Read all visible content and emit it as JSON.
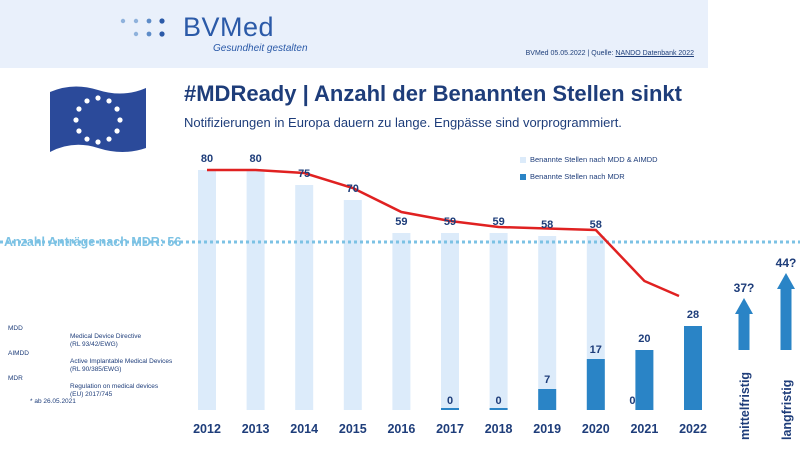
{
  "header": {
    "logo_text": "BVMed",
    "tagline": "Gesundheit gestalten",
    "source_prefix": "BVMed 05.05.2022 | Quelle: ",
    "source_link": "NANDO Datenbank 2022"
  },
  "title": "#MDReady | Anzahl der Benannten Stellen sinkt",
  "subtitle": "Notifizierungen in Europa dauern zu lange. Engpässe sind vorprogrammiert.",
  "reference_label": "Anzahl Anträge nach MDR: 56",
  "abbreviations": [
    {
      "key": "MDD",
      "line1": "Medical Device Directive",
      "line2": "(RL 93/42/EWG)"
    },
    {
      "key": "AIMDD",
      "line1": "Active Implantable Medical Devices",
      "line2": "(RL 90/385/EWG)"
    },
    {
      "key": "MDR",
      "line1": "Regulation on medical devices",
      "line2": "(EU) 2017/745"
    }
  ],
  "footnote": "* ab 26.05.2021",
  "colors": {
    "light_bar": "#dcebfa",
    "dark_bar": "#2a84c6",
    "trend_line": "#e02121",
    "reference_line": "#7cc2e4",
    "text": "#1e3d7a",
    "flag": "#2b4a9a",
    "stars": "#ffffff"
  },
  "chart_data": {
    "type": "bar",
    "categories": [
      "2012",
      "2013",
      "2014",
      "2015",
      "2016",
      "2017",
      "2018",
      "2019",
      "2020",
      "2021",
      "2022"
    ],
    "series": [
      {
        "name": "Benannte Stellen nach MDD & AIMDD",
        "values": [
          80,
          80,
          75,
          70,
          59,
          59,
          59,
          58,
          58,
          0,
          null
        ]
      },
      {
        "name": "Benannte Stellen nach MDR",
        "values": [
          null,
          null,
          null,
          null,
          null,
          0,
          0,
          7,
          17,
          20,
          28
        ]
      }
    ],
    "top_labels": [
      "80",
      "80",
      "75",
      "70",
      "59",
      "59",
      "59",
      "58",
      "58",
      "20",
      "28"
    ],
    "light_zero_label": {
      "category": "2021",
      "text": "0"
    },
    "dark_inside_labels": [
      {
        "category": "2017",
        "text": "0"
      },
      {
        "category": "2018",
        "text": "0"
      },
      {
        "category": "2019",
        "text": "7"
      },
      {
        "category": "2020",
        "text": "17"
      }
    ],
    "trend_line": [
      80,
      80,
      79,
      74,
      66,
      63,
      61,
      60.5,
      60,
      43,
      38
    ],
    "reference_value": 56,
    "ylim": [
      0,
      90
    ],
    "forecast": [
      {
        "label": "mittelfristig",
        "value_label": "37?"
      },
      {
        "label": "langfristig",
        "value_label": "44?"
      }
    ],
    "legend_position": "top-right"
  }
}
